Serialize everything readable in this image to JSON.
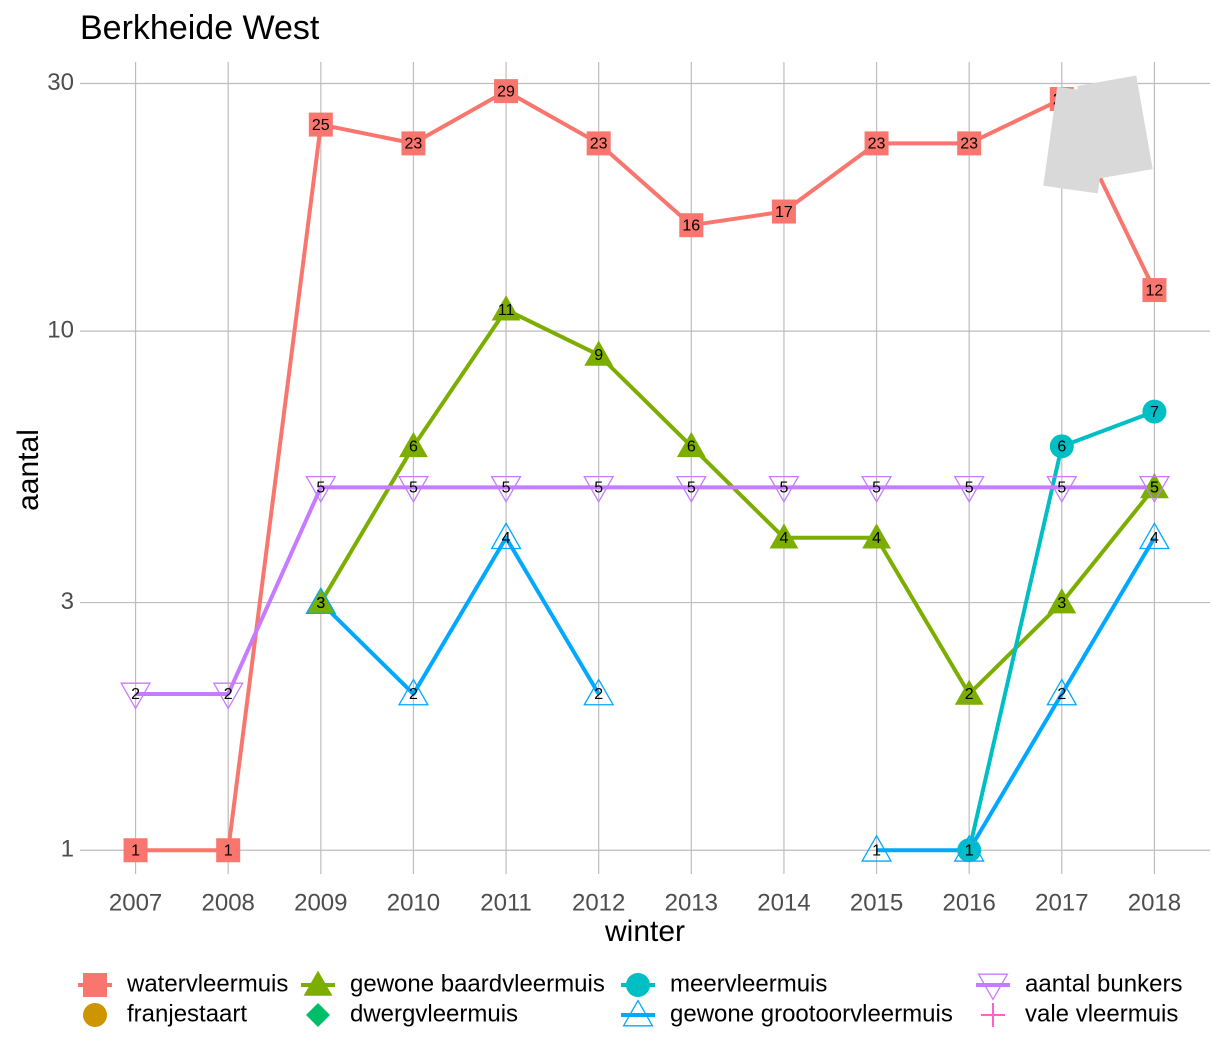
{
  "chart_data": {
    "type": "line",
    "title": "Berkheide West",
    "x_label": "winter",
    "y_label": "aantal",
    "x": [
      2007,
      2008,
      2009,
      2010,
      2011,
      2012,
      2013,
      2014,
      2015,
      2016,
      2017,
      2018
    ],
    "xlim": [
      2006.4,
      2018.6
    ],
    "xticks": [
      2007,
      2008,
      2009,
      2010,
      2011,
      2012,
      2013,
      2014,
      2015,
      2016,
      2017,
      2018
    ],
    "ylim": [
      0.9,
      33
    ],
    "yticks": [
      1,
      3,
      10,
      30
    ],
    "log_y": true,
    "grid": true,
    "legend_position": "bottom",
    "series": [
      {
        "name": "watervleermuis",
        "color": "#f8766d",
        "marker": "square",
        "values": [
          1,
          1,
          25,
          23,
          29,
          23,
          16,
          17,
          23,
          23,
          28,
          12
        ]
      },
      {
        "name": "gewone baardvleermuis",
        "color": "#7cae00",
        "marker": "triangle",
        "values": [
          null,
          null,
          3,
          6,
          11,
          9,
          6,
          4,
          4,
          2,
          3,
          5
        ]
      },
      {
        "name": "meervleermuis",
        "color": "#00bfc4",
        "marker": "circle",
        "values": [
          null,
          null,
          null,
          null,
          null,
          null,
          null,
          null,
          null,
          1,
          6,
          7
        ]
      },
      {
        "name": "aantal bunkers",
        "color": "#c77cff",
        "marker": "open-triangle-down",
        "values": [
          2,
          2,
          5,
          5,
          5,
          5,
          5,
          5,
          5,
          5,
          5,
          5
        ]
      },
      {
        "name": "franjestaart",
        "color": "#cd9600",
        "marker": "circle",
        "values": [
          null,
          null,
          null,
          null,
          null,
          null,
          null,
          null,
          null,
          null,
          null,
          null
        ]
      },
      {
        "name": "dwergvleermuis",
        "color": "#00be67",
        "marker": "diamond",
        "values": [
          null,
          null,
          null,
          null,
          null,
          null,
          null,
          null,
          null,
          null,
          null,
          null
        ]
      },
      {
        "name": "gewone grootoorvleermuis",
        "color": "#00a9ff",
        "marker": "open-triangle",
        "values": [
          null,
          null,
          3,
          2,
          4,
          2,
          null,
          null,
          1,
          1,
          2,
          4
        ]
      },
      {
        "name": "vale vleermuis",
        "color": "#ff61cc",
        "marker": "plus",
        "values": [
          null,
          null,
          null,
          null,
          null,
          null,
          null,
          null,
          null,
          null,
          null,
          null
        ]
      }
    ]
  }
}
